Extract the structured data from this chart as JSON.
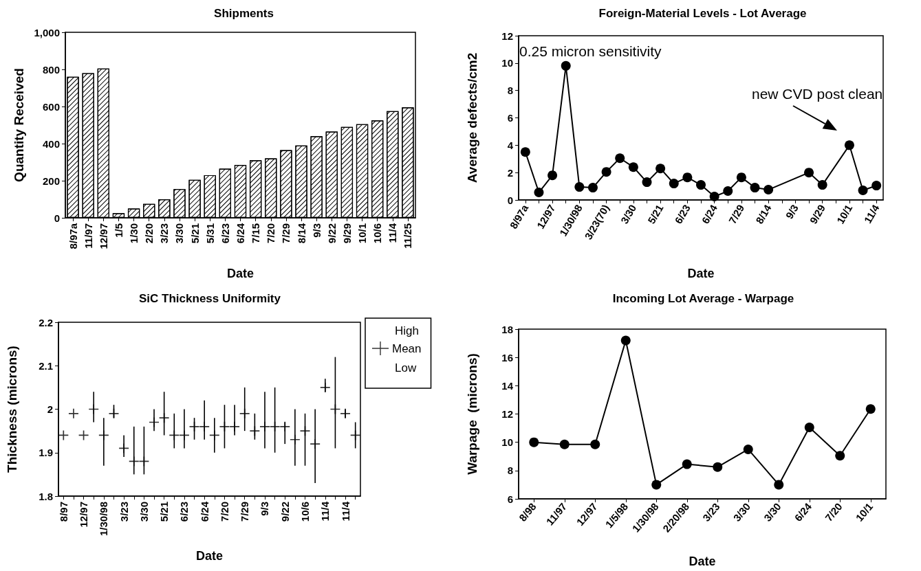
{
  "chart_data": [
    {
      "type": "bar",
      "title": "Shipments",
      "xlabel": "Date",
      "ylabel": "Quantity Received",
      "categories": [
        "8/97a",
        "11/97",
        "12/97",
        "1/5",
        "1/30",
        "2/20",
        "3/23",
        "3/30",
        "5/21",
        "5/31",
        "6/23",
        "6/24",
        "7/15",
        "7/20",
        "7/29",
        "8/14",
        "9/3",
        "9/22",
        "9/29",
        "10/1",
        "10/6",
        "11/4",
        "11/25"
      ],
      "values": [
        760,
        780,
        805,
        25,
        50,
        75,
        100,
        155,
        205,
        230,
        265,
        285,
        310,
        320,
        365,
        390,
        440,
        465,
        490,
        505,
        525,
        575,
        595
      ],
      "color": "#ffffff",
      "ylim": [
        0,
        1000
      ],
      "yticks": [
        0,
        200,
        400,
        600,
        800,
        {
          "value": 1000,
          "label": "1,000"
        }
      ]
    },
    {
      "type": "line",
      "title": "Foreign-Material Levels - Lot Average",
      "xlabel": "Date",
      "ylabel": "Average defects/cm2",
      "categories": [
        "8/97a",
        null,
        "12/97",
        null,
        "1/30/98",
        null,
        "3/23(70)",
        null,
        "3/30",
        null,
        "5/21",
        null,
        "6/23",
        null,
        "6/24",
        null,
        "7/29",
        null,
        "8/14",
        null,
        "9/3",
        null,
        "9/29",
        null,
        "10/1",
        null,
        "11/4"
      ],
      "values": [
        3.5,
        0.55,
        1.8,
        9.8,
        0.95,
        0.9,
        2.05,
        3.05,
        2.4,
        1.3,
        2.3,
        1.2,
        1.65,
        1.1,
        0.25,
        0.65,
        1.65,
        0.9,
        0.75,
        null,
        null,
        2.0,
        1.1,
        null,
        4.0,
        0.7,
        1.05
      ],
      "color": "#000000",
      "marker": "circle",
      "ylim": [
        0,
        12
      ],
      "yticks": [
        0,
        2,
        4,
        6,
        8,
        10,
        12
      ],
      "annotations": [
        "0.25 micron sensitivity",
        "new CVD post clean"
      ]
    },
    {
      "type": "scatter",
      "title": "SiC Thickness Uniformity",
      "xlabel": "Date",
      "ylabel": "Thickness (microns)",
      "categories": [
        "8/97",
        null,
        "12/97",
        null,
        "1/30/98",
        null,
        "3/23",
        null,
        "3/30",
        null,
        "5/21",
        null,
        "6/23",
        null,
        "6/24",
        null,
        "7/20",
        null,
        "7/29",
        null,
        "9/3",
        null,
        "9/22",
        null,
        "10/6",
        null,
        "11/4",
        null,
        "11/4",
        null
      ],
      "series": [
        {
          "name": "Mean",
          "color": "#000000",
          "values": [
            1.94,
            1.99,
            1.94,
            2.0,
            1.94,
            1.99,
            1.91,
            1.88,
            1.88,
            1.97,
            1.98,
            1.94,
            1.94,
            1.96,
            1.96,
            1.94,
            1.96,
            1.96,
            1.99,
            1.95,
            1.96,
            1.96,
            1.96,
            1.93,
            1.95,
            1.92,
            2.05,
            2.0,
            1.99,
            1.94
          ],
          "errors": [
            null,
            null,
            null,
            [
              1.97,
              2.04
            ],
            [
              1.87,
              1.98
            ],
            [
              1.98,
              2.01
            ],
            [
              1.89,
              1.94
            ],
            [
              1.85,
              1.96
            ],
            [
              1.85,
              1.96
            ],
            [
              1.95,
              2.0
            ],
            [
              1.94,
              2.04
            ],
            [
              1.91,
              1.99
            ],
            [
              1.91,
              2.0
            ],
            [
              1.93,
              1.98
            ],
            [
              1.93,
              2.02
            ],
            [
              1.9,
              1.98
            ],
            [
              1.91,
              2.01
            ],
            [
              1.94,
              2.01
            ],
            [
              1.95,
              2.05
            ],
            [
              1.93,
              1.99
            ],
            [
              1.91,
              2.04
            ],
            [
              1.9,
              2.05
            ],
            [
              1.92,
              1.97
            ],
            [
              1.87,
              2.0
            ],
            [
              1.87,
              1.99
            ],
            [
              1.83,
              2.0
            ],
            [
              2.04,
              2.07
            ],
            [
              1.91,
              2.12
            ],
            [
              1.98,
              2.0
            ],
            [
              1.91,
              1.97
            ]
          ]
        }
      ],
      "ylim": [
        1.8,
        2.2
      ],
      "yticks": [
        1.8,
        1.9,
        2,
        2.1,
        2.2
      ],
      "marker": "cross",
      "legend": "right",
      "annotations": [
        "High",
        "Low"
      ]
    },
    {
      "type": "line",
      "title": "Incoming Lot Average - Warpage",
      "xlabel": "Date",
      "ylabel": "Warpage  (microns)",
      "categories": [
        "8/98",
        "11/97",
        "12/97",
        "1/5/98",
        "1/30/98",
        "2/20/98",
        "3/23",
        "3/30",
        "3/30",
        "6/24",
        "7/20",
        "10/1"
      ],
      "values": [
        10.0,
        9.85,
        9.85,
        17.2,
        7.0,
        8.45,
        8.25,
        9.5,
        7.0,
        11.05,
        9.05,
        12.35
      ],
      "color": "#000000",
      "marker": "circle",
      "ylim": [
        6,
        18
      ],
      "yticks": [
        6,
        8,
        10,
        12,
        14,
        16,
        18
      ]
    }
  ]
}
